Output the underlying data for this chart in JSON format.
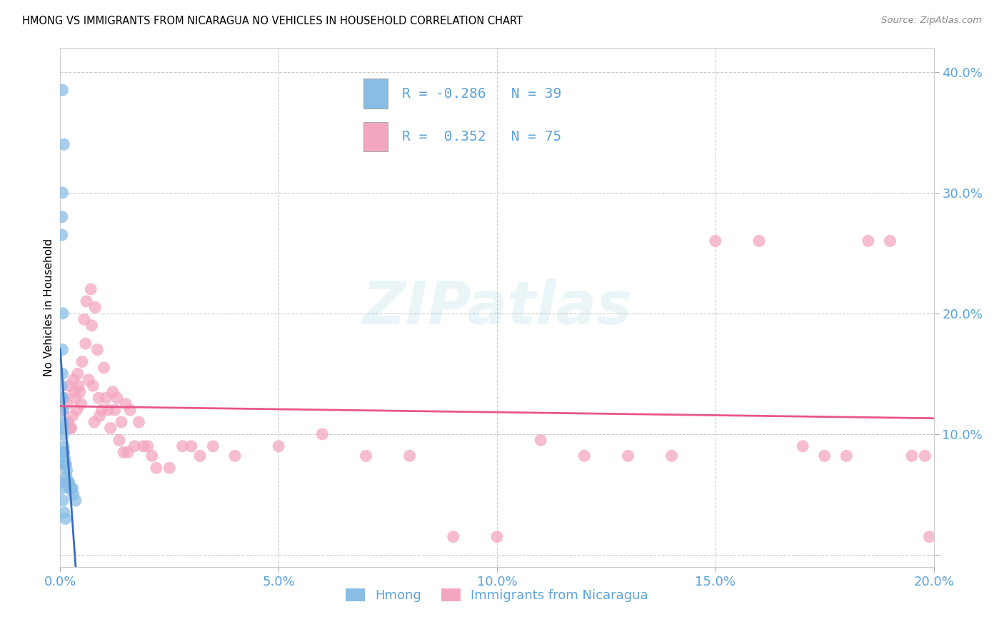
{
  "title": "HMONG VS IMMIGRANTS FROM NICARAGUA NO VEHICLES IN HOUSEHOLD CORRELATION CHART",
  "source": "Source: ZipAtlas.com",
  "ylabel": "No Vehicles in Household",
  "xlim": [
    0.0,
    0.2
  ],
  "ylim": [
    -0.01,
    0.42
  ],
  "xticks": [
    0.0,
    0.05,
    0.1,
    0.15,
    0.2
  ],
  "yticks": [
    0.0,
    0.1,
    0.2,
    0.3,
    0.4
  ],
  "xtick_labels": [
    "0.0%",
    "5.0%",
    "10.0%",
    "15.0%",
    "20.0%"
  ],
  "ytick_labels": [
    "",
    "10.0%",
    "20.0%",
    "30.0%",
    "40.0%"
  ],
  "watermark_text": "ZIPatlas",
  "legend_label1": "Hmong",
  "legend_label2": "Immigrants from Nicaragua",
  "R1": "-0.286",
  "N1": "39",
  "R2": " 0.352",
  "N2": "75",
  "color_blue": "#88bde6",
  "color_pink": "#f4a6c0",
  "color_blue_line": "#3a6bbf",
  "color_pink_line": "#e8558a",
  "color_axis_labels": "#5ba3d9",
  "background_color": "#ffffff",
  "grid_color": "#cccccc",
  "hmong_x": [
    0.0005,
    0.0008,
    0.0005,
    0.0004,
    0.0004,
    0.0006,
    0.0005,
    0.0005,
    0.0003,
    0.0004,
    0.0005,
    0.0006,
    0.0006,
    0.0007,
    0.0007,
    0.0008,
    0.0007,
    0.0008,
    0.0009,
    0.001,
    0.001,
    0.0012,
    0.0013,
    0.0015,
    0.0014,
    0.0016,
    0.0017,
    0.0018,
    0.002,
    0.0022,
    0.0025,
    0.0028,
    0.003,
    0.0035,
    0.0003,
    0.0004,
    0.0006,
    0.0009,
    0.0012
  ],
  "hmong_y": [
    0.385,
    0.34,
    0.3,
    0.28,
    0.265,
    0.2,
    0.17,
    0.15,
    0.14,
    0.13,
    0.13,
    0.12,
    0.11,
    0.105,
    0.1,
    0.09,
    0.085,
    0.085,
    0.085,
    0.08,
    0.075,
    0.075,
    0.075,
    0.07,
    0.065,
    0.06,
    0.06,
    0.06,
    0.06,
    0.055,
    0.055,
    0.055,
    0.05,
    0.045,
    0.06,
    0.055,
    0.045,
    0.035,
    0.03
  ],
  "nic_x": [
    0.0005,
    0.001,
    0.0015,
    0.0018,
    0.002,
    0.0022,
    0.0025,
    0.0028,
    0.003,
    0.0032,
    0.0035,
    0.0038,
    0.004,
    0.0042,
    0.0045,
    0.0048,
    0.005,
    0.0055,
    0.0058,
    0.006,
    0.0065,
    0.007,
    0.0072,
    0.0075,
    0.0078,
    0.008,
    0.0085,
    0.0088,
    0.009,
    0.0095,
    0.01,
    0.0105,
    0.011,
    0.0115,
    0.012,
    0.0125,
    0.013,
    0.0135,
    0.014,
    0.0145,
    0.015,
    0.0155,
    0.016,
    0.017,
    0.018,
    0.019,
    0.02,
    0.021,
    0.022,
    0.025,
    0.028,
    0.03,
    0.032,
    0.035,
    0.04,
    0.05,
    0.06,
    0.07,
    0.08,
    0.09,
    0.1,
    0.11,
    0.12,
    0.13,
    0.14,
    0.15,
    0.16,
    0.17,
    0.175,
    0.18,
    0.185,
    0.19,
    0.195,
    0.198,
    0.199
  ],
  "nic_y": [
    0.12,
    0.13,
    0.125,
    0.11,
    0.14,
    0.105,
    0.105,
    0.115,
    0.145,
    0.135,
    0.13,
    0.12,
    0.15,
    0.14,
    0.135,
    0.125,
    0.16,
    0.195,
    0.175,
    0.21,
    0.145,
    0.22,
    0.19,
    0.14,
    0.11,
    0.205,
    0.17,
    0.13,
    0.115,
    0.12,
    0.155,
    0.13,
    0.12,
    0.105,
    0.135,
    0.12,
    0.13,
    0.095,
    0.11,
    0.085,
    0.125,
    0.085,
    0.12,
    0.09,
    0.11,
    0.09,
    0.09,
    0.082,
    0.072,
    0.072,
    0.09,
    0.09,
    0.082,
    0.09,
    0.082,
    0.09,
    0.1,
    0.082,
    0.082,
    0.015,
    0.015,
    0.095,
    0.082,
    0.082,
    0.082,
    0.26,
    0.26,
    0.09,
    0.082,
    0.082,
    0.26,
    0.26,
    0.082,
    0.082,
    0.015
  ]
}
